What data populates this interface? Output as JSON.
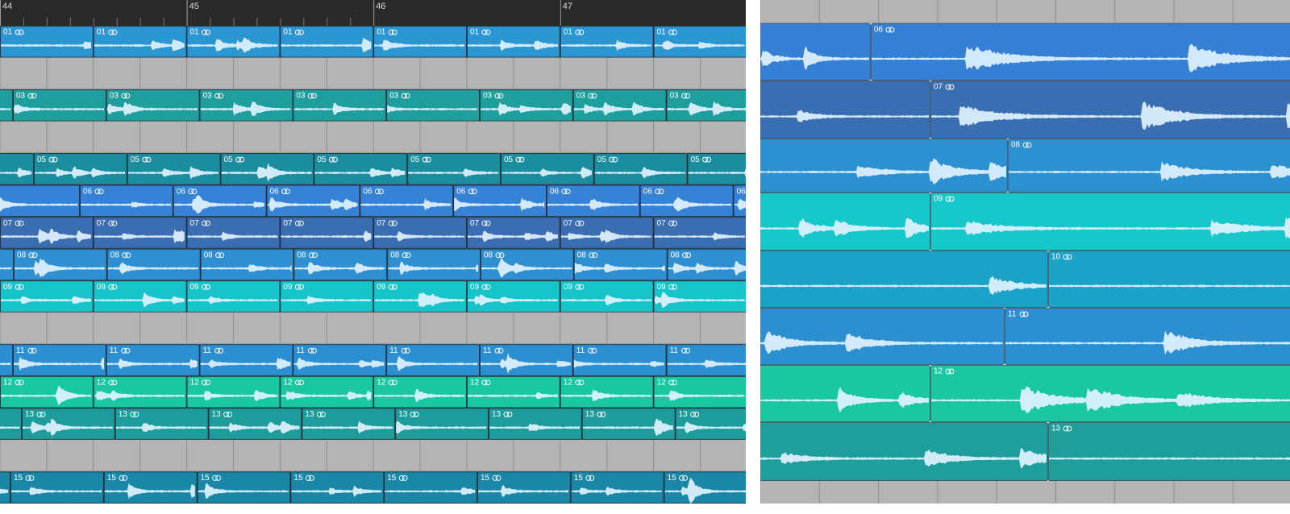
{
  "ruler": {
    "bars": [
      "44",
      "45",
      "46",
      "47"
    ]
  },
  "left": {
    "tracks": [
      {
        "regions": [
          "01",
          "01",
          "01",
          "01",
          "01",
          "01",
          "01",
          "01"
        ]
      },
      {
        "regions": []
      },
      {
        "regions": [
          "03",
          "03",
          "03",
          "03",
          "03",
          "03",
          "03",
          "03"
        ]
      },
      {
        "regions": []
      },
      {
        "regions": [
          "05",
          "05",
          "05",
          "05",
          "05",
          "05",
          "05",
          "05"
        ]
      },
      {
        "regions": [
          "06",
          "06",
          "06",
          "06",
          "06",
          "06",
          "06",
          "06"
        ]
      },
      {
        "regions": [
          "07",
          "07",
          "07",
          "07",
          "07",
          "07",
          "07",
          "07"
        ]
      },
      {
        "regions": [
          "08",
          "08",
          "08",
          "08",
          "08",
          "08",
          "08",
          "08"
        ]
      },
      {
        "regions": [
          "09",
          "09",
          "09",
          "09",
          "09",
          "09",
          "09",
          "09"
        ]
      },
      {
        "regions": []
      },
      {
        "regions": [
          "11",
          "11",
          "11",
          "11",
          "11",
          "11",
          "11",
          "11"
        ]
      },
      {
        "regions": [
          "12",
          "12",
          "12",
          "12",
          "12",
          "12",
          "12",
          "12"
        ]
      },
      {
        "regions": [
          "13",
          "13",
          "13",
          "13",
          "13",
          "13",
          "13",
          "13"
        ]
      },
      {
        "regions": []
      },
      {
        "regions": [
          "15",
          "15",
          "15",
          "15",
          "15",
          "15",
          "15",
          "15"
        ]
      }
    ]
  },
  "right": {
    "tracks": [
      {
        "regions": [
          "06"
        ]
      },
      {
        "regions": [
          "07"
        ]
      },
      {
        "regions": [
          "08"
        ]
      },
      {
        "regions": [
          "09"
        ]
      },
      {
        "regions": [
          "10"
        ]
      },
      {
        "regions": [
          "11"
        ]
      },
      {
        "regions": [
          "12"
        ]
      },
      {
        "regions": [
          "13"
        ]
      }
    ]
  }
}
